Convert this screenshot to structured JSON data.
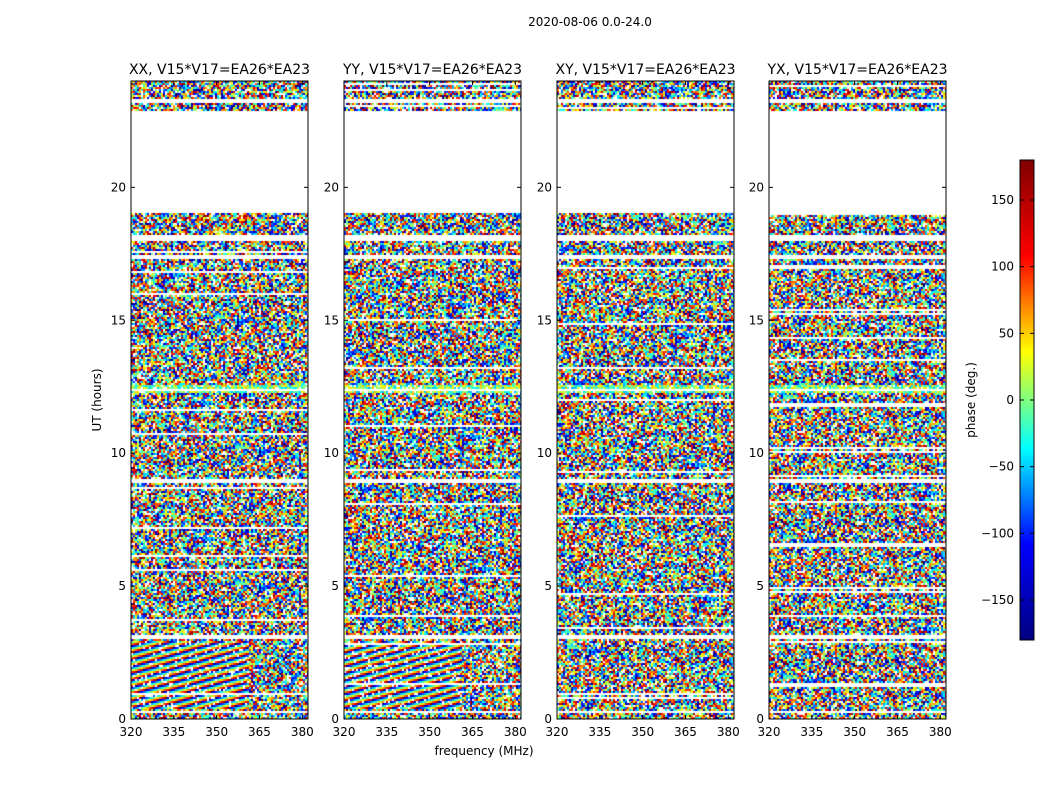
{
  "figure": {
    "suptitle": "2020-08-06 0.0-24.0",
    "xlabel": "frequency (MHz)",
    "ylabel": "UT (hours)"
  },
  "colorbar": {
    "label": "phase (deg.)",
    "min": -180,
    "max": 180,
    "ticks": [
      150,
      100,
      50,
      0,
      -50,
      -100,
      -150
    ],
    "tick_labels": [
      "150",
      "100",
      "50",
      "0",
      "−50",
      "−100",
      "−150"
    ],
    "colormap": "jet",
    "colormap_stops": [
      "#000080",
      "#0000ff",
      "#00ffff",
      "#ffff00",
      "#ff0000",
      "#800000"
    ]
  },
  "chart_data": {
    "type": "heatmap",
    "title": "2020-08-06 0.0-24.0",
    "xlabel": "frequency (MHz)",
    "ylabel": "UT (hours)",
    "xlim": [
      320,
      382
    ],
    "ylim": [
      0,
      24
    ],
    "x_ticks": [
      320,
      335,
      350,
      365,
      380
    ],
    "y_ticks": [
      0,
      5,
      10,
      15,
      20
    ],
    "value_label": "phase (deg.)",
    "value_range": [
      -180,
      180
    ],
    "gap_bands_hours": [
      [
        19.0,
        22.9
      ],
      [
        0.25,
        0.3
      ],
      [
        3.0,
        3.15
      ],
      [
        8.85,
        9.0
      ],
      [
        12.35,
        12.4
      ],
      [
        17.3,
        17.45
      ],
      [
        18.0,
        18.2
      ],
      [
        23.2,
        23.3
      ]
    ],
    "panels": [
      {
        "title": "XX, V15*V17=EA26*EA23",
        "pattern": "fringes"
      },
      {
        "title": "YY, V15*V17=EA26*EA23",
        "pattern": "fringes"
      },
      {
        "title": "XY, V15*V17=EA26*EA23",
        "pattern": "noise"
      },
      {
        "title": "YX, V15*V17=EA26*EA23",
        "pattern": "noise"
      }
    ]
  }
}
